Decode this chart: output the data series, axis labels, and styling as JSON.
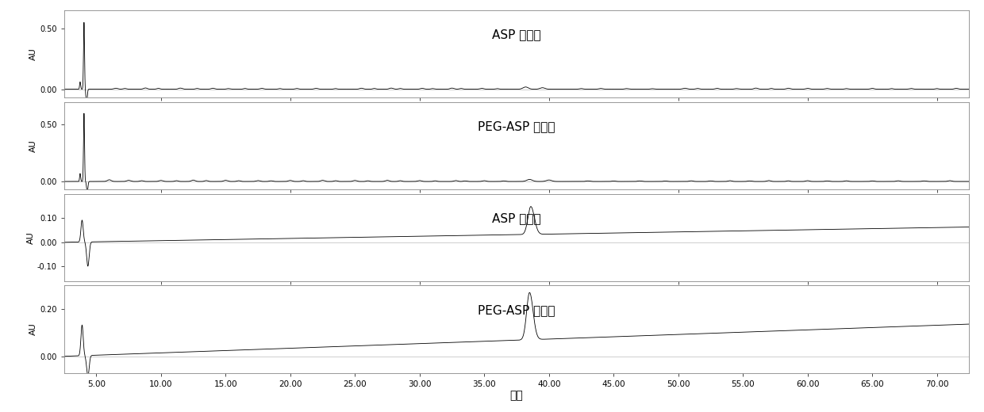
{
  "title": "",
  "xlabel": "分钟",
  "ylabel": "AU",
  "xlim": [
    2.5,
    72.5
  ],
  "xticks": [
    5.0,
    10.0,
    15.0,
    20.0,
    25.0,
    30.0,
    35.0,
    40.0,
    45.0,
    50.0,
    55.0,
    60.0,
    65.0,
    70.0
  ],
  "panels": [
    {
      "label": "ASP 酶解后",
      "ylim": [
        -0.07,
        0.65
      ],
      "yticks": [
        0.0,
        0.5
      ],
      "ytick_labels": [
        "0.00",
        "0.50"
      ]
    },
    {
      "label": "PEG-ASP 酶解后",
      "ylim": [
        -0.07,
        0.7
      ],
      "yticks": [
        0.0,
        0.5
      ],
      "ytick_labels": [
        "0.00",
        "0.50"
      ]
    },
    {
      "label": "ASP 酶解前",
      "ylim": [
        -0.16,
        0.2
      ],
      "yticks": [
        -0.1,
        0.0,
        0.1
      ],
      "ytick_labels": [
        "-0.10",
        "0.00",
        "0.10"
      ]
    },
    {
      "label": "PEG-ASP 酶解前",
      "ylim": [
        -0.07,
        0.3
      ],
      "yticks": [
        0.0,
        0.2
      ],
      "ytick_labels": [
        "0.00",
        "0.20"
      ]
    }
  ],
  "line_color": "#000000",
  "background_color": "#ffffff",
  "panel_bg": "#ffffff"
}
